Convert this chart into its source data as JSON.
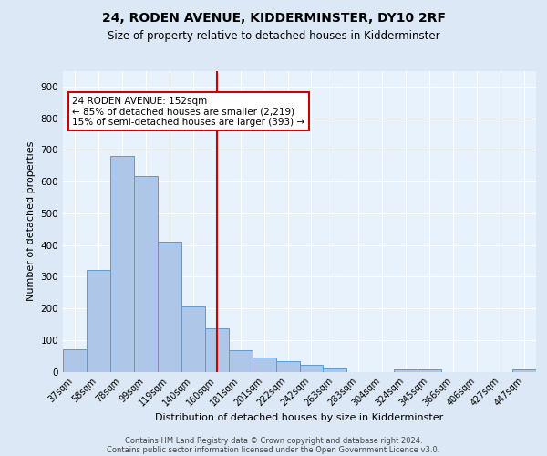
{
  "title1": "24, RODEN AVENUE, KIDDERMINSTER, DY10 2RF",
  "title2": "Size of property relative to detached houses in Kidderminster",
  "xlabel": "Distribution of detached houses by size in Kidderminster",
  "ylabel": "Number of detached properties",
  "categories": [
    "37sqm",
    "58sqm",
    "78sqm",
    "99sqm",
    "119sqm",
    "140sqm",
    "160sqm",
    "181sqm",
    "201sqm",
    "222sqm",
    "242sqm",
    "263sqm",
    "283sqm",
    "304sqm",
    "324sqm",
    "345sqm",
    "366sqm",
    "406sqm",
    "427sqm",
    "447sqm"
  ],
  "values": [
    70,
    322,
    680,
    618,
    410,
    207,
    137,
    68,
    46,
    32,
    22,
    10,
    0,
    0,
    7,
    7,
    0,
    0,
    0,
    8
  ],
  "bar_color": "#aec6e8",
  "bar_edge_color": "#5b9bd5",
  "vline_color": "#cc0000",
  "vline_x": 6.0,
  "annotation_text": "24 RODEN AVENUE: 152sqm\n← 85% of detached houses are smaller (2,219)\n15% of semi-detached houses are larger (393) →",
  "annotation_box_color": "#ffffff",
  "annotation_box_edge": "#cc0000",
  "ylim": [
    0,
    950
  ],
  "yticks": [
    0,
    100,
    200,
    300,
    400,
    500,
    600,
    700,
    800,
    900
  ],
  "footer1": "Contains HM Land Registry data © Crown copyright and database right 2024.",
  "footer2": "Contains public sector information licensed under the Open Government Licence v3.0.",
  "bg_color": "#dce8f5",
  "plot_bg_color": "#e8f2fc",
  "grid_color": "#ffffff",
  "title1_fontsize": 10,
  "title2_fontsize": 8.5,
  "ylabel_fontsize": 8,
  "xlabel_fontsize": 8,
  "tick_fontsize": 7,
  "footer_fontsize": 6
}
